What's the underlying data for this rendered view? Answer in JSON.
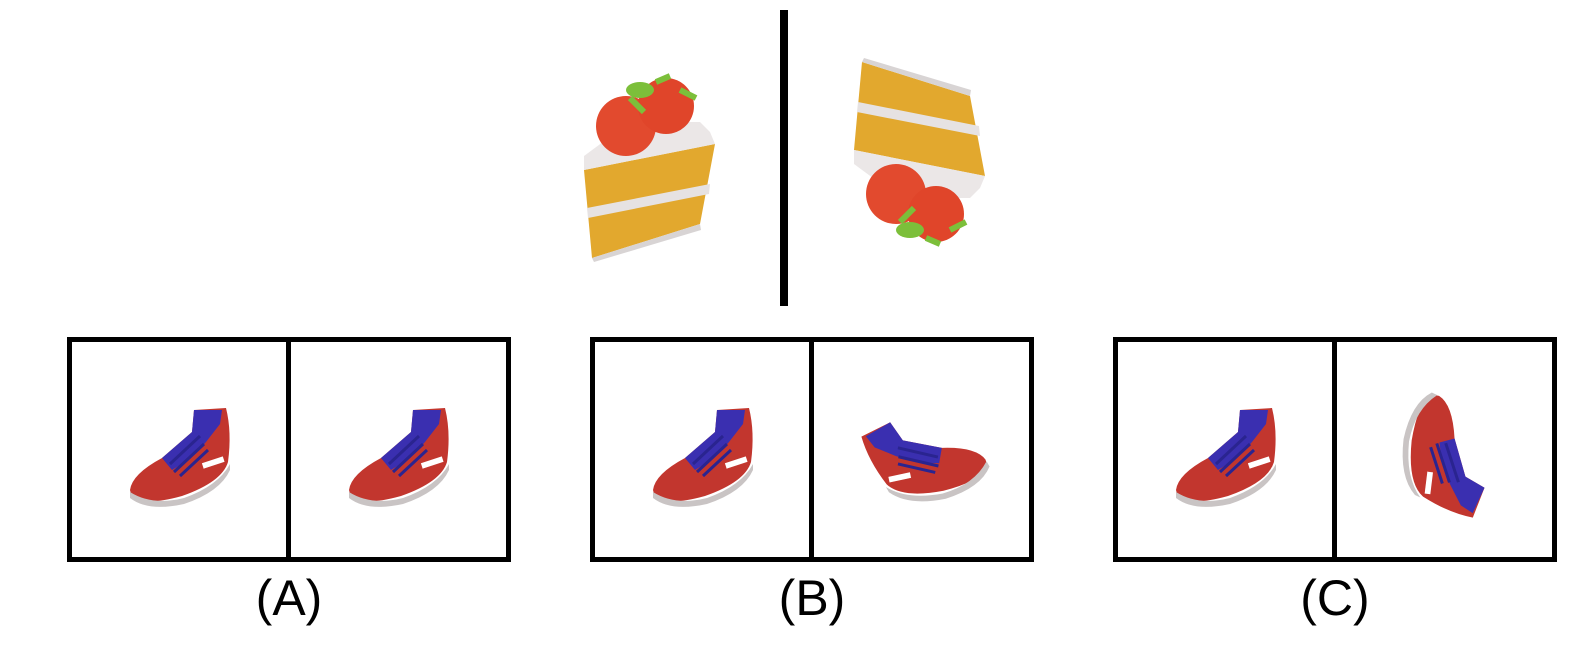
{
  "colors": {
    "frame": "#000000",
    "cake_sponge": "#e2a82e",
    "cake_cream": "#e6e2e2",
    "strawberry": "#e24a2e",
    "leaf": "#7cbf3a",
    "shoe_body": "#c2362e",
    "shoe_upper": "#3a2fb0",
    "shoe_sole": "#c9c4c4"
  },
  "example": {
    "left_icon": "strawberry-cake-slice",
    "right_icon": "strawberry-cake-slice-rotated"
  },
  "options": [
    {
      "label": "(A)",
      "left_icon": "sneaker",
      "right_icon": "sneaker"
    },
    {
      "label": "(B)",
      "left_icon": "sneaker",
      "right_icon": "sneaker-rotated"
    },
    {
      "label": "(C)",
      "left_icon": "sneaker",
      "right_icon": "sneaker-rotated"
    }
  ]
}
